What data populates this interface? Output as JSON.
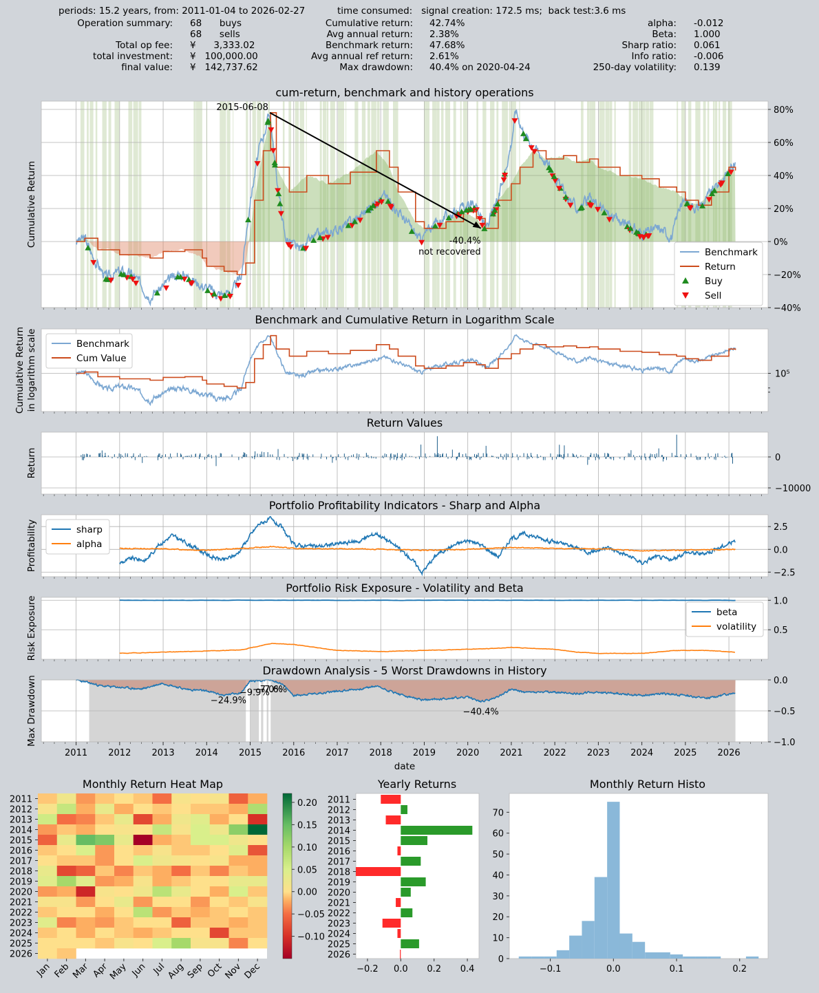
{
  "summary": {
    "periods": "periods: 15.2 years, from: 2011-01-04 to 2026-02-27",
    "time_consumed": "time consumed:   signal creation: 172.5 ms;  back test:3.6 ms",
    "col1": [
      {
        "label": "Operation summary:",
        "value": "68      buys"
      },
      {
        "label": "",
        "value": "68      sells"
      },
      {
        "label": "Total op fee:",
        "value": "¥      3,333.02"
      },
      {
        "label": "total investment:",
        "value": "¥   100,000.00"
      },
      {
        "label": "final value:",
        "value": "¥   142,737.62"
      }
    ],
    "col2": [
      {
        "label": "Cumulative return:",
        "value": "42.74%"
      },
      {
        "label": "Avg annual return:",
        "value": "2.38%"
      },
      {
        "label": "Benchmark return:",
        "value": "47.68%"
      },
      {
        "label": "Avg annual ref return:",
        "value": "2.61%"
      },
      {
        "label": "Max drawdown:",
        "value": "40.4% on 2020-04-24"
      }
    ],
    "col3": [
      {
        "label": "alpha:",
        "value": "-0.012"
      },
      {
        "label": "Beta:",
        "value": "1.000"
      },
      {
        "label": "Sharp ratio:",
        "value": "0.061"
      },
      {
        "label": "Info ratio:",
        "value": "-0.006"
      },
      {
        "label": "250-day volatility:",
        "value": "0.139"
      }
    ]
  },
  "colors": {
    "benchmark": "#7ba7d2",
    "return": "#cc4b1c",
    "buy": "#1f8b1f",
    "sell": "#ee1111",
    "blue": "#1f77b4",
    "orange": "#ff7f0e",
    "hold": "#b8cfa0"
  },
  "chart_data": [
    {
      "id": "cum",
      "type": "line",
      "title": "cum-return, benchmark and history operations",
      "ylabel": "Cumulative Return",
      "ylim": [
        -0.4,
        0.85
      ],
      "yticks": [
        "80%",
        "60%",
        "40%",
        "20%",
        "0%",
        "−20%",
        "−40%"
      ],
      "legend": [
        "Benchmark",
        "Return",
        "Buy",
        "Sell"
      ],
      "annotations": [
        "2015-06-08",
        "-40.4%",
        "not recovered"
      ],
      "series": [
        {
          "name": "Benchmark",
          "x": [
            2011.0,
            2011.2,
            2011.4,
            2011.7,
            2012.0,
            2012.3,
            2012.7,
            2013.0,
            2013.3,
            2013.5,
            2013.8,
            2014.0,
            2014.3,
            2014.6,
            2014.8,
            2015.0,
            2015.2,
            2015.45,
            2015.6,
            2015.8,
            2016.1,
            2016.5,
            2017.0,
            2017.5,
            2017.9,
            2018.1,
            2018.5,
            2018.9,
            2019.2,
            2019.5,
            2019.9,
            2020.2,
            2020.4,
            2020.7,
            2021.0,
            2021.1,
            2021.3,
            2021.6,
            2021.9,
            2022.2,
            2022.5,
            2022.8,
            2023.0,
            2023.3,
            2023.7,
            2024.0,
            2024.4,
            2024.7,
            2024.85,
            2025.0,
            2025.3,
            2025.6,
            2025.9,
            2026.15
          ],
          "y": [
            0.0,
            0.02,
            -0.1,
            -0.22,
            -0.18,
            -0.2,
            -0.33,
            -0.27,
            -0.2,
            -0.2,
            -0.25,
            -0.28,
            -0.32,
            -0.3,
            -0.2,
            0.25,
            0.55,
            0.78,
            0.4,
            0.03,
            -0.05,
            0.03,
            0.07,
            0.15,
            0.25,
            0.28,
            0.15,
            0.01,
            0.1,
            0.15,
            0.2,
            0.22,
            0.08,
            0.25,
            0.6,
            0.8,
            0.65,
            0.55,
            0.45,
            0.3,
            0.2,
            0.25,
            0.22,
            0.15,
            0.1,
            0.05,
            0.08,
            0.03,
            0.2,
            0.25,
            0.2,
            0.3,
            0.4,
            0.48
          ]
        },
        {
          "name": "Return",
          "x": [
            2011.0,
            2011.2,
            2011.5,
            2011.8,
            2012.0,
            2012.3,
            2012.7,
            2013.0,
            2013.5,
            2013.9,
            2014.0,
            2014.4,
            2014.7,
            2014.9,
            2015.1,
            2015.3,
            2015.47,
            2015.6,
            2015.9,
            2016.3,
            2016.8,
            2017.3,
            2017.9,
            2018.2,
            2018.4,
            2018.8,
            2019.0,
            2019.5,
            2019.9,
            2020.2,
            2020.4,
            2020.7,
            2021.0,
            2021.2,
            2021.5,
            2021.8,
            2022.2,
            2022.5,
            2022.8,
            2023.0,
            2023.5,
            2024.0,
            2024.4,
            2024.8,
            2025.0,
            2025.3,
            2025.6,
            2026.0,
            2026.15
          ],
          "y": [
            0.0,
            0.02,
            -0.05,
            -0.05,
            -0.08,
            -0.08,
            -0.1,
            -0.06,
            -0.05,
            -0.1,
            -0.15,
            -0.18,
            -0.2,
            -0.13,
            0.25,
            0.55,
            0.78,
            0.45,
            0.3,
            0.4,
            0.35,
            0.42,
            0.55,
            0.45,
            0.3,
            0.12,
            0.08,
            0.12,
            0.18,
            0.14,
            0.08,
            0.25,
            0.35,
            0.45,
            0.55,
            0.5,
            0.52,
            0.48,
            0.5,
            0.45,
            0.4,
            0.38,
            0.33,
            0.3,
            0.25,
            0.22,
            0.3,
            0.45,
            0.43
          ]
        }
      ]
    },
    {
      "id": "log",
      "type": "line",
      "title": "Benchmark and Cumulative Return in Logarithm Scale",
      "ylabel": "Cumulative Return in logarithm scale",
      "yscale": "log",
      "ytick": "10⁵",
      "legend": [
        "Benchmark",
        "Cum Value"
      ]
    },
    {
      "id": "ret",
      "type": "bar",
      "title": "Return Values",
      "ylabel": "Return",
      "yticks": [
        "0",
        "−10000"
      ],
      "ylim": [
        -12000,
        8000
      ]
    },
    {
      "id": "prof",
      "type": "line",
      "title": "Portfolio Profitability Indicators - Sharp and Alpha",
      "ylabel": "Profitability",
      "ylim": [
        -3.0,
        3.8
      ],
      "yticks": [
        "2.5",
        "0.0",
        "−2.5"
      ],
      "legend": [
        "sharp",
        "alpha"
      ],
      "series": [
        {
          "name": "sharp",
          "x": [
            2012.0,
            2012.3,
            2012.6,
            2012.9,
            2013.2,
            2013.5,
            2013.8,
            2014.1,
            2014.4,
            2014.7,
            2015.0,
            2015.2,
            2015.45,
            2015.7,
            2016.0,
            2016.5,
            2017.0,
            2017.5,
            2017.9,
            2018.3,
            2018.7,
            2018.95,
            2019.3,
            2019.7,
            2020.0,
            2020.3,
            2020.7,
            2021.0,
            2021.3,
            2021.7,
            2022.0,
            2022.4,
            2022.8,
            2023.2,
            2023.6,
            2024.0,
            2024.3,
            2024.7,
            2025.0,
            2025.4,
            2025.8,
            2026.15
          ],
          "y": [
            -1.5,
            -1.0,
            -1.2,
            0.5,
            1.5,
            0.8,
            0.0,
            -0.8,
            -1.2,
            -0.5,
            1.5,
            2.8,
            3.3,
            2.5,
            0.5,
            0.3,
            0.6,
            0.9,
            1.8,
            0.5,
            -1.0,
            -2.5,
            -0.5,
            0.5,
            1.0,
            0.5,
            -0.8,
            1.2,
            1.7,
            1.2,
            0.8,
            0.3,
            -0.3,
            0.2,
            -0.5,
            -1.5,
            -0.8,
            -1.2,
            -0.3,
            -0.5,
            0.2,
            1.0
          ]
        },
        {
          "name": "alpha",
          "x": [
            2012.0,
            2013.0,
            2014.0,
            2015.0,
            2015.5,
            2016.0,
            2017.0,
            2018.0,
            2019.0,
            2020.0,
            2021.0,
            2022.0,
            2023.0,
            2024.0,
            2025.0,
            2026.15
          ],
          "y": [
            0.1,
            0.05,
            -0.1,
            0.15,
            0.3,
            0.1,
            0.05,
            0.0,
            -0.1,
            0.0,
            0.2,
            0.1,
            0.05,
            -0.15,
            -0.1,
            0.0
          ]
        }
      ]
    },
    {
      "id": "risk",
      "type": "line",
      "title": "Portfolio Risk Exposure - Volatility and Beta",
      "ylabel": "Risk Exposure",
      "ylim": [
        0.0,
        1.05
      ],
      "yticks": [
        "1.0",
        "0.5"
      ],
      "legend": [
        "beta",
        "volatility"
      ],
      "series": [
        {
          "name": "beta",
          "x": [
            2012.0,
            2026.15
          ],
          "y": [
            1.0,
            1.0
          ]
        },
        {
          "name": "volatility",
          "x": [
            2012.0,
            2013.0,
            2014.0,
            2014.8,
            2015.5,
            2016.0,
            2016.5,
            2017.0,
            2018.0,
            2019.0,
            2020.0,
            2020.5,
            2021.0,
            2022.0,
            2022.5,
            2023.0,
            2024.0,
            2024.8,
            2025.5,
            2026.15
          ],
          "y": [
            0.1,
            0.12,
            0.14,
            0.16,
            0.27,
            0.25,
            0.2,
            0.15,
            0.13,
            0.15,
            0.17,
            0.18,
            0.2,
            0.17,
            0.12,
            0.1,
            0.1,
            0.15,
            0.15,
            0.12
          ]
        }
      ]
    },
    {
      "id": "dd",
      "type": "area",
      "title": "Drawdown Analysis - 5 Worst Drawdowns in History",
      "ylabel": "Max Drawdown",
      "xlabel": "date",
      "ylim": [
        -1.0,
        0.0
      ],
      "yticks": [
        "0.0",
        "−0.5",
        "−1.0"
      ],
      "xticks": [
        "2011",
        "2012",
        "2013",
        "2014",
        "2015",
        "2016",
        "2017",
        "2018",
        "2019",
        "2020",
        "2021",
        "2022",
        "2023",
        "2024",
        "2025",
        "2026"
      ],
      "annotations": [
        "−24.9%",
        "−9.9%",
        "−7.0%",
        "−7.6%",
        "−40.4%"
      ],
      "series": [
        {
          "name": "drawdown",
          "x": [
            2011.0,
            2011.3,
            2011.6,
            2012.0,
            2012.5,
            2013.0,
            2013.5,
            2014.0,
            2014.4,
            2014.8,
            2015.0,
            2015.45,
            2015.7,
            2016.0,
            2016.5,
            2017.0,
            2017.5,
            2017.9,
            2018.5,
            2019.0,
            2019.5,
            2020.0,
            2020.3,
            2020.6,
            2021.0,
            2021.3,
            2022.0,
            2022.5,
            2023.0,
            2023.5,
            2024.0,
            2024.5,
            2025.0,
            2025.5,
            2026.15
          ],
          "y": [
            0.0,
            -0.05,
            -0.1,
            -0.12,
            -0.15,
            -0.05,
            -0.15,
            -0.18,
            -0.25,
            -0.2,
            -0.02,
            0.0,
            -0.05,
            -0.25,
            -0.22,
            -0.18,
            -0.15,
            -0.1,
            -0.25,
            -0.33,
            -0.3,
            -0.28,
            -0.35,
            -0.3,
            -0.15,
            -0.2,
            -0.2,
            -0.22,
            -0.2,
            -0.22,
            -0.25,
            -0.22,
            -0.25,
            -0.3,
            -0.2
          ]
        }
      ]
    },
    {
      "id": "heatmap",
      "type": "heatmap",
      "title": "Monthly Return Heat Map",
      "years": [
        "2011",
        "2012",
        "2013",
        "2014",
        "2015",
        "2016",
        "2017",
        "2018",
        "2019",
        "2020",
        "2021",
        "2022",
        "2023",
        "2024",
        "2025",
        "2026"
      ],
      "months": [
        "Jan",
        "Feb",
        "Mar",
        "Apr",
        "May",
        "Jun",
        "Jul",
        "Aug",
        "Sep",
        "Oct",
        "Nov",
        "Dec"
      ],
      "colorbar_ticks": [
        "0.20",
        "0.15",
        "0.10",
        "0.05",
        "0.00",
        "−0.05",
        "−0.10"
      ],
      "vmin": -0.15,
      "vmax": 0.22,
      "values": [
        [
          -0.01,
          0.02,
          -0.03,
          -0.01,
          0.0,
          -0.01,
          -0.05,
          0.01,
          0.0,
          0.01,
          -0.06,
          -0.02
        ],
        [
          0.01,
          0.07,
          -0.02,
          0.03,
          -0.02,
          0.0,
          -0.01,
          0.0,
          -0.01,
          -0.01,
          -0.02,
          0.09
        ],
        [
          0.06,
          -0.05,
          -0.04,
          -0.01,
          0.03,
          -0.08,
          -0.02,
          0.02,
          0.04,
          -0.02,
          0.0,
          -0.1
        ],
        [
          -0.03,
          -0.01,
          -0.02,
          0.0,
          0.01,
          0.0,
          0.07,
          0.01,
          0.05,
          0.02,
          0.12,
          0.22
        ],
        [
          -0.06,
          0.03,
          0.15,
          0.13,
          0.03,
          -0.15,
          -0.02,
          -0.01,
          0.05,
          0.05,
          0.02,
          0.0
        ],
        [
          -0.01,
          0.0,
          0.05,
          -0.03,
          0.0,
          -0.01,
          0.01,
          -0.01,
          -0.01,
          0.0,
          0.04,
          -0.07
        ],
        [
          0.0,
          -0.01,
          -0.01,
          -0.03,
          0.0,
          0.05,
          0.02,
          0.01,
          0.0,
          0.01,
          -0.02,
          -0.02
        ],
        [
          0.03,
          -0.08,
          -0.06,
          -0.01,
          -0.04,
          -0.01,
          -0.02,
          -0.05,
          -0.01,
          -0.04,
          -0.01,
          -0.02
        ],
        [
          0.04,
          0.1,
          0.04,
          -0.03,
          -0.02,
          0.01,
          -0.02,
          -0.01,
          0.0,
          0.0,
          0.03,
          0.03
        ],
        [
          -0.03,
          -0.02,
          -0.11,
          0.01,
          0.0,
          0.02,
          0.08,
          0.03,
          0.0,
          -0.02,
          0.05,
          -0.01
        ],
        [
          0.01,
          0.01,
          -0.03,
          0.0,
          0.03,
          -0.03,
          0.0,
          0.0,
          -0.03,
          0.0,
          -0.01,
          0.01
        ],
        [
          -0.01,
          0.0,
          0.0,
          -0.02,
          0.0,
          0.08,
          -0.03,
          -0.01,
          -0.02,
          -0.01,
          0.0,
          -0.01
        ],
        [
          0.04,
          -0.04,
          -0.02,
          -0.03,
          -0.01,
          0.0,
          0.0,
          -0.06,
          -0.01,
          -0.01,
          -0.02,
          -0.01
        ],
        [
          -0.01,
          0.0,
          -0.02,
          0.0,
          -0.01,
          -0.02,
          -0.01,
          0.0,
          0.0,
          -0.08,
          -0.01,
          -0.01
        ],
        [
          0.0,
          0.0,
          0.0,
          -0.01,
          0.01,
          0.0,
          0.05,
          0.1,
          0.01,
          0.01,
          -0.04,
          0.0
        ],
        [
          0.0,
          -0.01
        ]
      ]
    },
    {
      "id": "yearly",
      "type": "bar",
      "orientation": "horizontal",
      "title": "Yearly Returns",
      "categories": [
        "2011",
        "2012",
        "2013",
        "2014",
        "2015",
        "2016",
        "2017",
        "2018",
        "2019",
        "2020",
        "2021",
        "2022",
        "2023",
        "2024",
        "2025",
        "2026"
      ],
      "values": [
        -0.12,
        0.04,
        -0.09,
        0.43,
        0.16,
        -0.02,
        0.12,
        -0.27,
        0.15,
        0.06,
        -0.03,
        0.07,
        -0.11,
        -0.02,
        0.11,
        -0.005
      ],
      "xlim": [
        -0.27,
        0.47
      ],
      "xticks": [
        -0.2,
        0.0,
        0.2,
        0.4
      ],
      "xtick_labels": [
        "−0.2",
        "0.0",
        "0.2",
        "0.4"
      ]
    },
    {
      "id": "histo",
      "type": "bar",
      "title": "Monthly Return Histo",
      "bin_edges": [
        -0.15,
        -0.13,
        -0.11,
        -0.09,
        -0.07,
        -0.05,
        -0.03,
        -0.01,
        0.01,
        0.03,
        0.05,
        0.07,
        0.09,
        0.11,
        0.13,
        0.15,
        0.17,
        0.19,
        0.21,
        0.23
      ],
      "counts": [
        1,
        1,
        1,
        4,
        11,
        18,
        39,
        75,
        12,
        8,
        3,
        3,
        2,
        1,
        1,
        1,
        0,
        0,
        1
      ],
      "xlim": [
        -0.165,
        0.245
      ],
      "ylim": [
        0,
        79
      ],
      "xticks": [
        -0.1,
        0.0,
        0.1,
        0.2
      ],
      "xtick_labels": [
        "−0.1",
        "0.0",
        "0.1",
        "0.2"
      ],
      "yticks": [
        0,
        10,
        20,
        30,
        40,
        50,
        60,
        70
      ]
    }
  ]
}
